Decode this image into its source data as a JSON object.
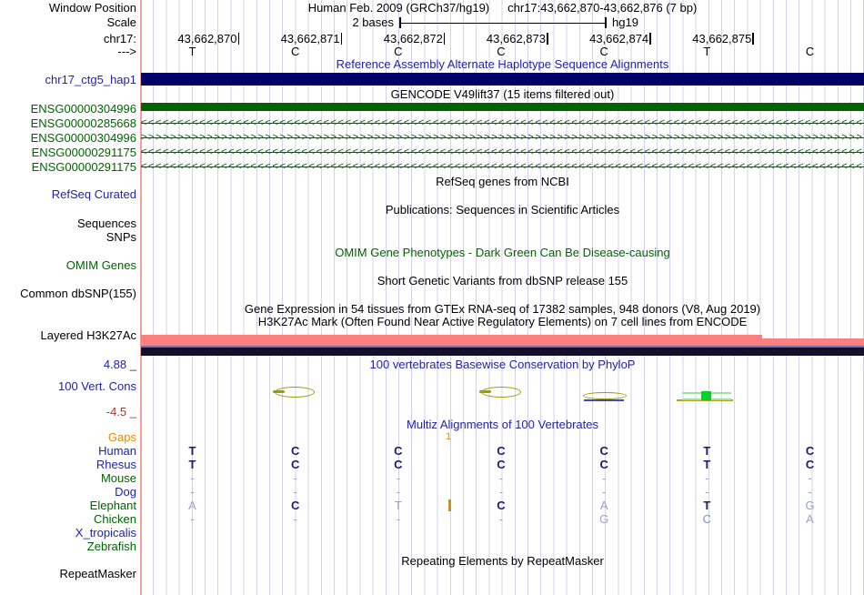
{
  "colors": {
    "navy_text": "#2222aa",
    "green_text": "#006400",
    "orange_text": "#e68a00",
    "maroon_text": "#983a28",
    "haplotype_bar": "#000066",
    "gene_bar": "#006400",
    "h3k27ac_pink": "#fd8080",
    "h3k27ac_slate": "#7a6fae",
    "h3k27ac_dark": "#14102a",
    "phylop_olive": "#9c9c00",
    "phylop_green": "#00d42a",
    "guideline": "#d2d2ec",
    "window_start_line": "#f59c9c",
    "dark_base": "#1b1b70",
    "light_base": "#9aa0c8"
  },
  "header": {
    "window_position_label": "Window Position",
    "assembly_title": "Human Feb. 2009 (GRCh37/hg19)",
    "position_title": "chr17:43,662,870-43,662,876 (7 bp)",
    "scale_label": "Scale",
    "scale_value": "2 bases",
    "genome": "hg19",
    "chrom_label": "chr17:",
    "strand_label": "--->",
    "ruler_ticks": [
      "43,662,870",
      "43,662,871",
      "43,662,872",
      "43,662,873",
      "43,662,874",
      "43,662,875"
    ],
    "bases": [
      "T",
      "C",
      "C",
      "C",
      "C",
      "T",
      "C"
    ]
  },
  "alt_haplotype": {
    "title": "Reference Assembly Alternate Haplotype Sequence Alignments",
    "item": "chr17_ctg5_hap1"
  },
  "gencode": {
    "title": "GENCODE V49lift37 (15 items filtered out)",
    "genes": [
      {
        "id": "ENSG00000304996",
        "glyph": "exon"
      },
      {
        "id": "ENSG00000285668",
        "glyph": "<"
      },
      {
        "id": "ENSG00000304996",
        "glyph": ">"
      },
      {
        "id": "ENSG00000291175",
        "glyph": "<"
      },
      {
        "id": "ENSG00000291175",
        "glyph": "<"
      }
    ]
  },
  "refseq": {
    "title": "RefSeq genes from NCBI",
    "label": "RefSeq Curated"
  },
  "publications": {
    "title": "Publications: Sequences in Scientific Articles",
    "labels": [
      "Sequences",
      "SNPs"
    ]
  },
  "omim": {
    "title": "OMIM Gene Phenotypes - Dark Green Can Be Disease-causing",
    "label": "OMIM Genes"
  },
  "dbsnp": {
    "title": "Short Genetic Variants from dbSNP release 155",
    "label": "Common dbSNP(155)"
  },
  "gtex": {
    "title": "Gene Expression in 54 tissues from GTEx RNA-seq of 17382 samples, 948 donors (V8, Aug 2019)"
  },
  "h3k27ac": {
    "title": "H3K27Ac Mark (Often Found Near Active Regulatory Elements) on 7 cell lines from ENCODE",
    "label": "Layered H3K27Ac"
  },
  "conservation": {
    "title": "100 vertebrates Basewise Conservation by PhyloP",
    "label": "100 Vert. Cons",
    "max_value": "4.88 _",
    "min_value": "-4.5 _"
  },
  "multiz": {
    "title": "Multiz Alignments of 100 Vertebrates",
    "gaps_label": "Gaps",
    "gap_count": "1",
    "rows": [
      {
        "name": "Human",
        "name_color": "navy",
        "bases": [
          "T",
          "C",
          "C",
          "C",
          "C",
          "T",
          "C"
        ],
        "shades": [
          "d",
          "d",
          "d",
          "d",
          "d",
          "d",
          "d"
        ]
      },
      {
        "name": "Rhesus",
        "name_color": "navy",
        "bases": [
          "T",
          "C",
          "C",
          "C",
          "C",
          "T",
          "C"
        ],
        "shades": [
          "d",
          "d",
          "d",
          "d",
          "d",
          "d",
          "d"
        ]
      },
      {
        "name": "Mouse",
        "name_color": "green",
        "bases": [
          "-",
          "-",
          "-",
          "-",
          "-",
          "-",
          "-"
        ],
        "shades": [
          "l",
          "l",
          "l",
          "l",
          "l",
          "l",
          "l"
        ]
      },
      {
        "name": "Dog",
        "name_color": "navy",
        "bases": [
          "-",
          "-",
          "-",
          "-",
          "-",
          "-",
          "-"
        ],
        "shades": [
          "l",
          "l",
          "l",
          "l",
          "l",
          "l",
          "l"
        ]
      },
      {
        "name": "Elephant",
        "name_color": "green",
        "bases": [
          "A",
          "C",
          "T",
          "C",
          "A",
          "T",
          "G"
        ],
        "shades": [
          "l",
          "d",
          "l",
          "d",
          "l",
          "d",
          "l"
        ],
        "insert_marker": true
      },
      {
        "name": "Chicken",
        "name_color": "green",
        "bases": [
          "-",
          "-",
          "-",
          "-",
          "G",
          "C",
          "A"
        ],
        "shades": [
          "l",
          "l",
          "l",
          "l",
          "l",
          "b",
          "l"
        ]
      },
      {
        "name": "X_tropicalis",
        "name_color": "navy",
        "bases": [
          "",
          "",
          "",
          "",
          "",
          "",
          ""
        ],
        "shades": [
          "",
          "",
          "",
          "",
          "",
          "",
          ""
        ]
      },
      {
        "name": "Zebrafish",
        "name_color": "green",
        "bases": [
          "",
          "",
          "",
          "",
          "",
          "",
          ""
        ],
        "shades": [
          "",
          "",
          "",
          "",
          "",
          "",
          ""
        ]
      }
    ]
  },
  "repeatmasker": {
    "title": "Repeating Elements by RepeatMasker",
    "label": "RepeatMasker"
  }
}
